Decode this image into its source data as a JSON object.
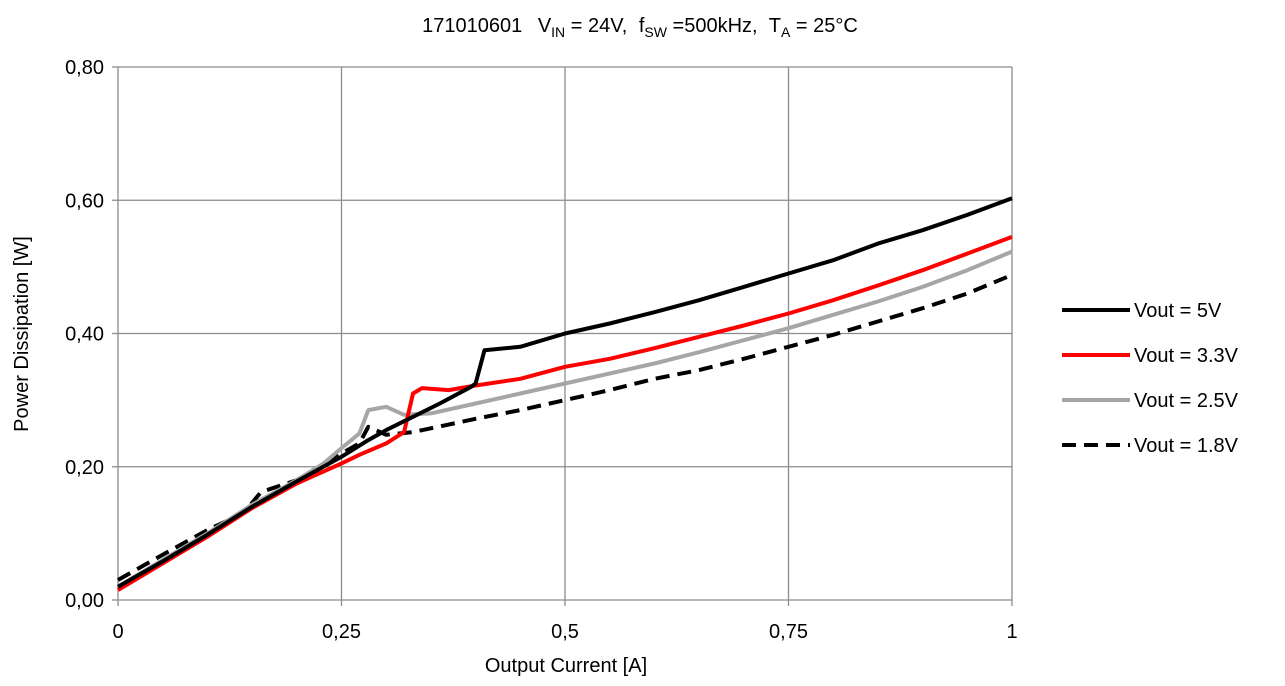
{
  "chart_data": {
    "type": "line",
    "title": {
      "part_id": "171010601",
      "vin_label": "V",
      "vin_sub": "IN",
      "vin_value": " = 24V,",
      "fsw_label": "f",
      "fsw_sub": "SW",
      "fsw_value": " =500kHz,",
      "ta_label": "T",
      "ta_sub": "A",
      "ta_value": " = 25°C"
    },
    "xlabel": "Output Current [A]",
    "ylabel": "Power Dissipation [W]",
    "xlim": [
      0,
      1
    ],
    "ylim": [
      0,
      0.8
    ],
    "x_ticks": [
      {
        "value": 0,
        "label": "0"
      },
      {
        "value": 0.25,
        "label": "0,25"
      },
      {
        "value": 0.5,
        "label": "0,5"
      },
      {
        "value": 0.75,
        "label": "0,75"
      },
      {
        "value": 1,
        "label": "1"
      }
    ],
    "y_ticks": [
      {
        "value": 0,
        "label": "0,00"
      },
      {
        "value": 0.2,
        "label": "0,20"
      },
      {
        "value": 0.4,
        "label": "0,40"
      },
      {
        "value": 0.6,
        "label": "0,60"
      },
      {
        "value": 0.8,
        "label": "0,80"
      }
    ],
    "grid": true,
    "legend_position": "right",
    "series": [
      {
        "name": "Vout = 5V",
        "color": "#000000",
        "dashed": false,
        "points": [
          [
            0,
            0.02
          ],
          [
            0.05,
            0.058
          ],
          [
            0.1,
            0.098
          ],
          [
            0.15,
            0.14
          ],
          [
            0.2,
            0.178
          ],
          [
            0.25,
            0.215
          ],
          [
            0.28,
            0.24
          ],
          [
            0.3,
            0.255
          ],
          [
            0.33,
            0.275
          ],
          [
            0.36,
            0.295
          ],
          [
            0.395,
            0.32
          ],
          [
            0.4,
            0.325
          ],
          [
            0.41,
            0.375
          ],
          [
            0.45,
            0.38
          ],
          [
            0.5,
            0.4
          ],
          [
            0.55,
            0.415
          ],
          [
            0.6,
            0.432
          ],
          [
            0.65,
            0.45
          ],
          [
            0.7,
            0.47
          ],
          [
            0.75,
            0.49
          ],
          [
            0.8,
            0.51
          ],
          [
            0.85,
            0.535
          ],
          [
            0.9,
            0.555
          ],
          [
            0.95,
            0.578
          ],
          [
            1.0,
            0.603
          ]
        ]
      },
      {
        "name": "Vout = 3.3V",
        "color": "#ff0000",
        "dashed": false,
        "points": [
          [
            0,
            0.015
          ],
          [
            0.05,
            0.055
          ],
          [
            0.1,
            0.095
          ],
          [
            0.15,
            0.138
          ],
          [
            0.2,
            0.175
          ],
          [
            0.25,
            0.205
          ],
          [
            0.27,
            0.218
          ],
          [
            0.3,
            0.235
          ],
          [
            0.32,
            0.252
          ],
          [
            0.33,
            0.31
          ],
          [
            0.34,
            0.318
          ],
          [
            0.37,
            0.315
          ],
          [
            0.4,
            0.322
          ],
          [
            0.45,
            0.332
          ],
          [
            0.5,
            0.35
          ],
          [
            0.55,
            0.362
          ],
          [
            0.6,
            0.378
          ],
          [
            0.65,
            0.395
          ],
          [
            0.7,
            0.412
          ],
          [
            0.75,
            0.43
          ],
          [
            0.8,
            0.45
          ],
          [
            0.85,
            0.472
          ],
          [
            0.9,
            0.495
          ],
          [
            0.95,
            0.52
          ],
          [
            1.0,
            0.545
          ]
        ]
      },
      {
        "name": "Vout = 2.5V",
        "color": "#a6a6a6",
        "dashed": false,
        "points": [
          [
            0,
            0.02
          ],
          [
            0.05,
            0.06
          ],
          [
            0.1,
            0.1
          ],
          [
            0.15,
            0.143
          ],
          [
            0.2,
            0.18
          ],
          [
            0.23,
            0.205
          ],
          [
            0.25,
            0.228
          ],
          [
            0.27,
            0.25
          ],
          [
            0.28,
            0.285
          ],
          [
            0.3,
            0.29
          ],
          [
            0.32,
            0.278
          ],
          [
            0.35,
            0.28
          ],
          [
            0.4,
            0.295
          ],
          [
            0.45,
            0.31
          ],
          [
            0.5,
            0.325
          ],
          [
            0.55,
            0.34
          ],
          [
            0.6,
            0.355
          ],
          [
            0.65,
            0.372
          ],
          [
            0.7,
            0.39
          ],
          [
            0.75,
            0.408
          ],
          [
            0.8,
            0.428
          ],
          [
            0.85,
            0.448
          ],
          [
            0.9,
            0.47
          ],
          [
            0.95,
            0.495
          ],
          [
            1.0,
            0.523
          ]
        ]
      },
      {
        "name": "Vout = 1.8V",
        "color": "#000000",
        "dashed": true,
        "points": [
          [
            0,
            0.03
          ],
          [
            0.05,
            0.068
          ],
          [
            0.1,
            0.105
          ],
          [
            0.14,
            0.13
          ],
          [
            0.16,
            0.162
          ],
          [
            0.2,
            0.18
          ],
          [
            0.25,
            0.22
          ],
          [
            0.27,
            0.235
          ],
          [
            0.28,
            0.26
          ],
          [
            0.3,
            0.248
          ],
          [
            0.33,
            0.252
          ],
          [
            0.4,
            0.272
          ],
          [
            0.45,
            0.285
          ],
          [
            0.5,
            0.3
          ],
          [
            0.55,
            0.315
          ],
          [
            0.6,
            0.332
          ],
          [
            0.65,
            0.345
          ],
          [
            0.7,
            0.362
          ],
          [
            0.75,
            0.38
          ],
          [
            0.8,
            0.398
          ],
          [
            0.85,
            0.418
          ],
          [
            0.9,
            0.438
          ],
          [
            0.95,
            0.46
          ],
          [
            1.0,
            0.488
          ]
        ]
      }
    ]
  }
}
